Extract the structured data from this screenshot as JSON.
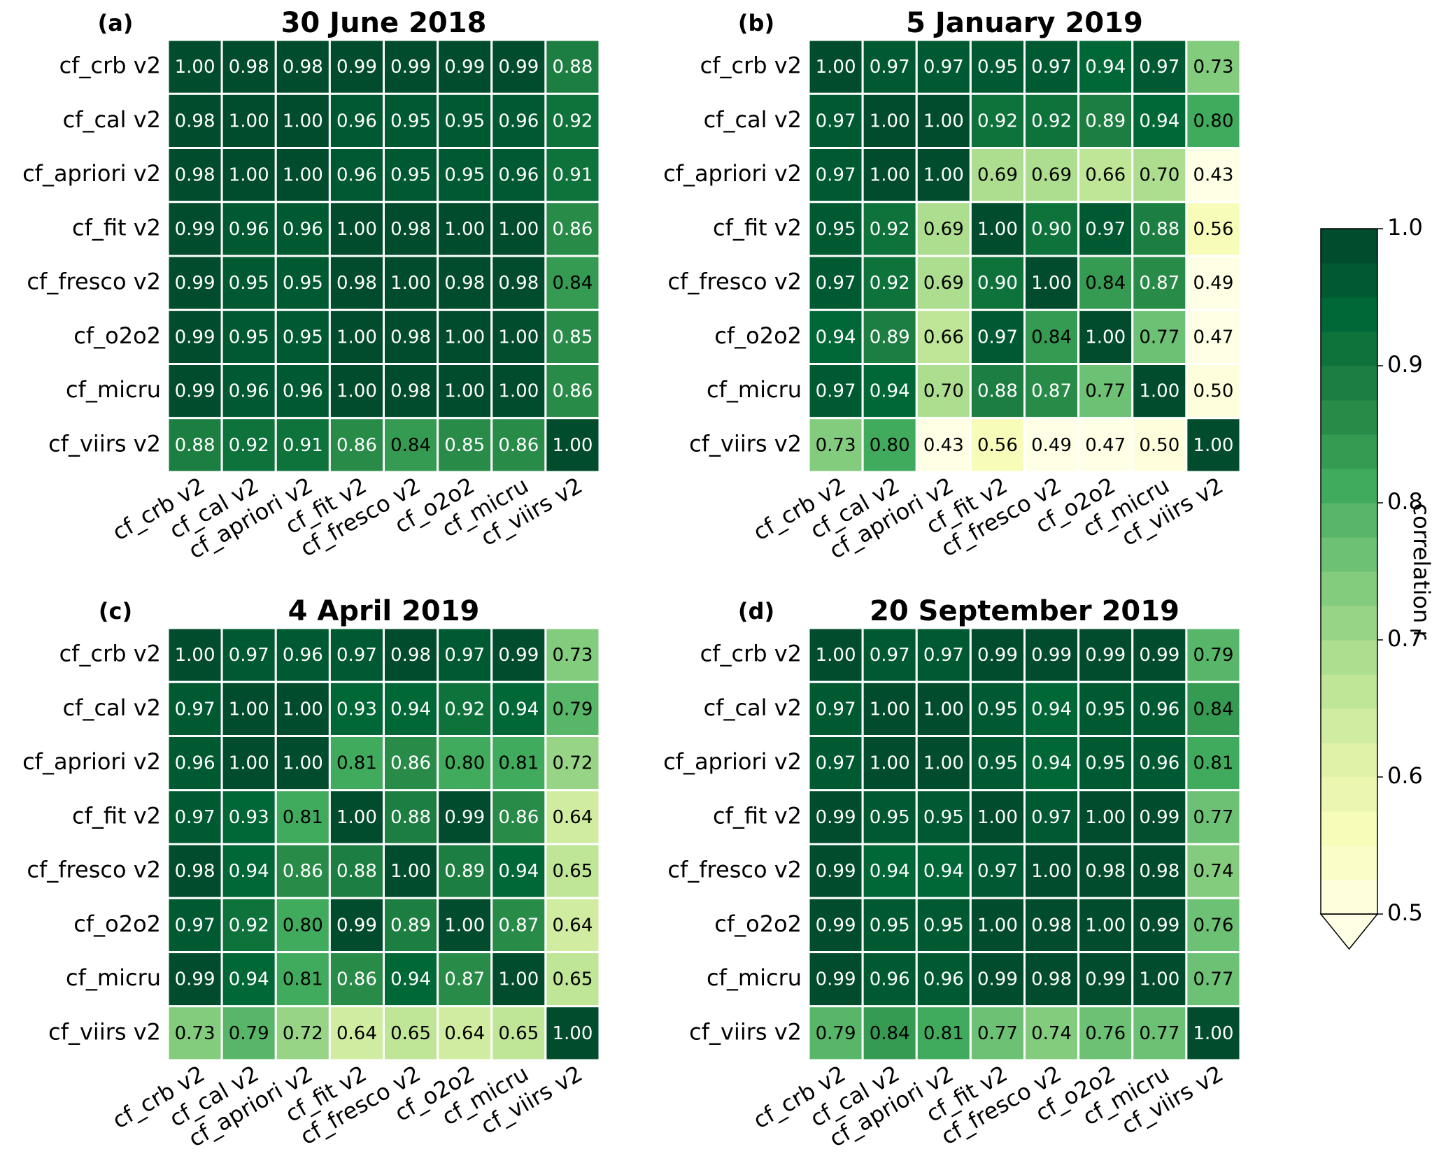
{
  "chart_data": [
    {
      "type": "heatmap",
      "panel_label": "(a)",
      "title": "30 June 2018",
      "categories": [
        "cf_crb v2",
        "cf_cal v2",
        "cf_apriori v2",
        "cf_fit v2",
        "cf_fresco v2",
        "cf_o2o2",
        "cf_micru",
        "cf_viirs v2"
      ],
      "rows": [
        "cf_crb v2",
        "cf_cal v2",
        "cf_apriori v2",
        "cf_fit v2",
        "cf_fresco v2",
        "cf_o2o2",
        "cf_micru",
        "cf_viirs v2"
      ],
      "values": [
        [
          1.0,
          0.98,
          0.98,
          0.99,
          0.99,
          0.99,
          0.99,
          0.88
        ],
        [
          0.98,
          1.0,
          1.0,
          0.96,
          0.95,
          0.95,
          0.96,
          0.92
        ],
        [
          0.98,
          1.0,
          1.0,
          0.96,
          0.95,
          0.95,
          0.96,
          0.91
        ],
        [
          0.99,
          0.96,
          0.96,
          1.0,
          0.98,
          1.0,
          1.0,
          0.86
        ],
        [
          0.99,
          0.95,
          0.95,
          0.98,
          1.0,
          0.98,
          0.98,
          0.84
        ],
        [
          0.99,
          0.95,
          0.95,
          1.0,
          0.98,
          1.0,
          1.0,
          0.85
        ],
        [
          0.99,
          0.96,
          0.96,
          1.0,
          0.98,
          1.0,
          1.0,
          0.86
        ],
        [
          0.88,
          0.92,
          0.91,
          0.86,
          0.84,
          0.85,
          0.86,
          1.0
        ]
      ],
      "value_labels": [
        [
          "1.00",
          "0.98",
          "0.98",
          "0.99",
          "0.99",
          "0.99",
          "0.99",
          "0.88"
        ],
        [
          "0.98",
          "1.00",
          "1.00",
          "0.96",
          "0.95",
          "0.95",
          "0.96",
          "0.92"
        ],
        [
          "0.98",
          "1.00",
          "1.00",
          "0.96",
          "0.95",
          "0.95",
          "0.96",
          "0.91"
        ],
        [
          "0.99",
          "0.96",
          "0.96",
          "1.00",
          "0.98",
          "1.00",
          "1.00",
          "0.86"
        ],
        [
          "0.99",
          "0.95",
          "0.95",
          "0.98",
          "1.00",
          "0.98",
          "0.98",
          "0.84"
        ],
        [
          "0.99",
          "0.95",
          "0.95",
          "1.00",
          "0.98",
          "1.00",
          "1.00",
          "0.85"
        ],
        [
          "0.99",
          "0.96",
          "0.96",
          "1.00",
          "0.98",
          "1.00",
          "1.00",
          "0.86"
        ],
        [
          "0.88",
          "0.92",
          "0.91",
          "0.86",
          "0.84",
          "0.85",
          "0.86",
          "1.00"
        ]
      ]
    },
    {
      "type": "heatmap",
      "panel_label": "(b)",
      "title": "5 January 2019",
      "categories": [
        "cf_crb v2",
        "cf_cal v2",
        "cf_apriori v2",
        "cf_fit v2",
        "cf_fresco v2",
        "cf_o2o2",
        "cf_micru",
        "cf_viirs v2"
      ],
      "rows": [
        "cf_crb v2",
        "cf_cal v2",
        "cf_apriori v2",
        "cf_fit v2",
        "cf_fresco v2",
        "cf_o2o2",
        "cf_micru",
        "cf_viirs v2"
      ],
      "values": [
        [
          1.0,
          0.97,
          0.97,
          0.95,
          0.97,
          0.94,
          0.97,
          0.73
        ],
        [
          0.97,
          1.0,
          1.0,
          0.92,
          0.92,
          0.89,
          0.94,
          0.8
        ],
        [
          0.97,
          1.0,
          1.0,
          0.69,
          0.69,
          0.66,
          0.7,
          0.43
        ],
        [
          0.95,
          0.92,
          0.69,
          1.0,
          0.9,
          0.97,
          0.88,
          0.56
        ],
        [
          0.97,
          0.92,
          0.69,
          0.9,
          1.0,
          0.84,
          0.87,
          0.49
        ],
        [
          0.94,
          0.89,
          0.66,
          0.97,
          0.84,
          1.0,
          0.77,
          0.47
        ],
        [
          0.97,
          0.94,
          0.7,
          0.88,
          0.87,
          0.77,
          1.0,
          0.5
        ],
        [
          0.73,
          0.8,
          0.43,
          0.56,
          0.49,
          0.47,
          0.5,
          1.0
        ]
      ],
      "value_labels": [
        [
          "1.00",
          "0.97",
          "0.97",
          "0.95",
          "0.97",
          "0.94",
          "0.97",
          "0.73"
        ],
        [
          "0.97",
          "1.00",
          "1.00",
          "0.92",
          "0.92",
          "0.89",
          "0.94",
          "0.80"
        ],
        [
          "0.97",
          "1.00",
          "1.00",
          "0.69",
          "0.69",
          "0.66",
          "0.70",
          "0.43"
        ],
        [
          "0.95",
          "0.92",
          "0.69",
          "1.00",
          "0.90",
          "0.97",
          "0.88",
          "0.56"
        ],
        [
          "0.97",
          "0.92",
          "0.69",
          "0.90",
          "1.00",
          "0.84",
          "0.87",
          "0.49"
        ],
        [
          "0.94",
          "0.89",
          "0.66",
          "0.97",
          "0.84",
          "1.00",
          "0.77",
          "0.47"
        ],
        [
          "0.97",
          "0.94",
          "0.70",
          "0.88",
          "0.87",
          "0.77",
          "1.00",
          "0.50"
        ],
        [
          "0.73",
          "0.80",
          "0.43",
          "0.56",
          "0.49",
          "0.47",
          "0.50",
          "1.00"
        ]
      ]
    },
    {
      "type": "heatmap",
      "panel_label": "(c)",
      "title": "4 April 2019",
      "categories": [
        "cf_crb v2",
        "cf_cal v2",
        "cf_apriori v2",
        "cf_fit v2",
        "cf_fresco v2",
        "cf_o2o2",
        "cf_micru",
        "cf_viirs v2"
      ],
      "rows": [
        "cf_crb v2",
        "cf_cal v2",
        "cf_apriori v2",
        "cf_fit v2",
        "cf_fresco v2",
        "cf_o2o2",
        "cf_micru",
        "cf_viirs v2"
      ],
      "values": [
        [
          1.0,
          0.97,
          0.96,
          0.97,
          0.98,
          0.97,
          0.99,
          0.73
        ],
        [
          0.97,
          1.0,
          1.0,
          0.93,
          0.94,
          0.92,
          0.94,
          0.79
        ],
        [
          0.96,
          1.0,
          1.0,
          0.81,
          0.86,
          0.8,
          0.81,
          0.72
        ],
        [
          0.97,
          0.93,
          0.81,
          1.0,
          0.88,
          0.99,
          0.86,
          0.64
        ],
        [
          0.98,
          0.94,
          0.86,
          0.88,
          1.0,
          0.89,
          0.94,
          0.65
        ],
        [
          0.97,
          0.92,
          0.8,
          0.99,
          0.89,
          1.0,
          0.87,
          0.64
        ],
        [
          0.99,
          0.94,
          0.81,
          0.86,
          0.94,
          0.87,
          1.0,
          0.65
        ],
        [
          0.73,
          0.79,
          0.72,
          0.64,
          0.65,
          0.64,
          0.65,
          1.0
        ]
      ],
      "value_labels": [
        [
          "1.00",
          "0.97",
          "0.96",
          "0.97",
          "0.98",
          "0.97",
          "0.99",
          "0.73"
        ],
        [
          "0.97",
          "1.00",
          "1.00",
          "0.93",
          "0.94",
          "0.92",
          "0.94",
          "0.79"
        ],
        [
          "0.96",
          "1.00",
          "1.00",
          "0.81",
          "0.86",
          "0.80",
          "0.81",
          "0.72"
        ],
        [
          "0.97",
          "0.93",
          "0.81",
          "1.00",
          "0.88",
          "0.99",
          "0.86",
          "0.64"
        ],
        [
          "0.98",
          "0.94",
          "0.86",
          "0.88",
          "1.00",
          "0.89",
          "0.94",
          "0.65"
        ],
        [
          "0.97",
          "0.92",
          "0.80",
          "0.99",
          "0.89",
          "1.00",
          "0.87",
          "0.64"
        ],
        [
          "0.99",
          "0.94",
          "0.81",
          "0.86",
          "0.94",
          "0.87",
          "1.00",
          "0.65"
        ],
        [
          "0.73",
          "0.79",
          "0.72",
          "0.64",
          "0.65",
          "0.64",
          "0.65",
          "1.00"
        ]
      ]
    },
    {
      "type": "heatmap",
      "panel_label": "(d)",
      "title": "20 September 2019",
      "categories": [
        "cf_crb v2",
        "cf_cal v2",
        "cf_apriori v2",
        "cf_fit v2",
        "cf_fresco v2",
        "cf_o2o2",
        "cf_micru",
        "cf_viirs v2"
      ],
      "rows": [
        "cf_crb v2",
        "cf_cal v2",
        "cf_apriori v2",
        "cf_fit v2",
        "cf_fresco v2",
        "cf_o2o2",
        "cf_micru",
        "cf_viirs v2"
      ],
      "values": [
        [
          1.0,
          0.97,
          0.97,
          0.99,
          0.99,
          0.99,
          0.99,
          0.79
        ],
        [
          0.97,
          1.0,
          1.0,
          0.95,
          0.94,
          0.95,
          0.96,
          0.84
        ],
        [
          0.97,
          1.0,
          1.0,
          0.95,
          0.94,
          0.95,
          0.96,
          0.81
        ],
        [
          0.99,
          0.95,
          0.95,
          1.0,
          0.97,
          1.0,
          0.99,
          0.77
        ],
        [
          0.99,
          0.94,
          0.94,
          0.97,
          1.0,
          0.98,
          0.98,
          0.74
        ],
        [
          0.99,
          0.95,
          0.95,
          1.0,
          0.98,
          1.0,
          0.99,
          0.76
        ],
        [
          0.99,
          0.96,
          0.96,
          0.99,
          0.98,
          0.99,
          1.0,
          0.77
        ],
        [
          0.79,
          0.84,
          0.81,
          0.77,
          0.74,
          0.76,
          0.77,
          1.0
        ]
      ],
      "value_labels": [
        [
          "1.00",
          "0.97",
          "0.97",
          "0.99",
          "0.99",
          "0.99",
          "0.99",
          "0.79"
        ],
        [
          "0.97",
          "1.00",
          "1.00",
          "0.95",
          "0.94",
          "0.95",
          "0.96",
          "0.84"
        ],
        [
          "0.97",
          "1.00",
          "1.00",
          "0.95",
          "0.94",
          "0.95",
          "0.96",
          "0.81"
        ],
        [
          "0.99",
          "0.95",
          "0.95",
          "1.00",
          "0.97",
          "1.00",
          "0.99",
          "0.77"
        ],
        [
          "0.99",
          "0.94",
          "0.94",
          "0.97",
          "1.00",
          "0.98",
          "0.98",
          "0.74"
        ],
        [
          "0.99",
          "0.95",
          "0.95",
          "1.00",
          "0.98",
          "1.00",
          "0.99",
          "0.76"
        ],
        [
          "0.99",
          "0.96",
          "0.96",
          "0.99",
          "0.98",
          "0.99",
          "1.00",
          "0.77"
        ],
        [
          "0.79",
          "0.84",
          "0.81",
          "0.77",
          "0.74",
          "0.76",
          "0.77",
          "1.00"
        ]
      ]
    }
  ],
  "colorbar": {
    "label": "correlation r",
    "lim": [
      0.5,
      1.0
    ],
    "ticks": [
      0.5,
      0.6,
      0.7,
      0.8,
      0.9,
      {
        "value": 1.0,
        "label": "1.0"
      }
    ],
    "extend": "min",
    "under_color": "#ffffe5",
    "colors": [
      "#fefedc",
      "#fafdc8",
      "#f7fcb9",
      "#ebf7b0",
      "#dff2a7",
      "#d0eca0",
      "#bfe596",
      "#addd8e",
      "#98d486",
      "#83cb7d",
      "#6dc174",
      "#57b667",
      "#41ab5d",
      "#359b52",
      "#298b48",
      "#1c7e40",
      "#0e733b",
      "#006837",
      "#005a31",
      "#004c2c"
    ]
  }
}
